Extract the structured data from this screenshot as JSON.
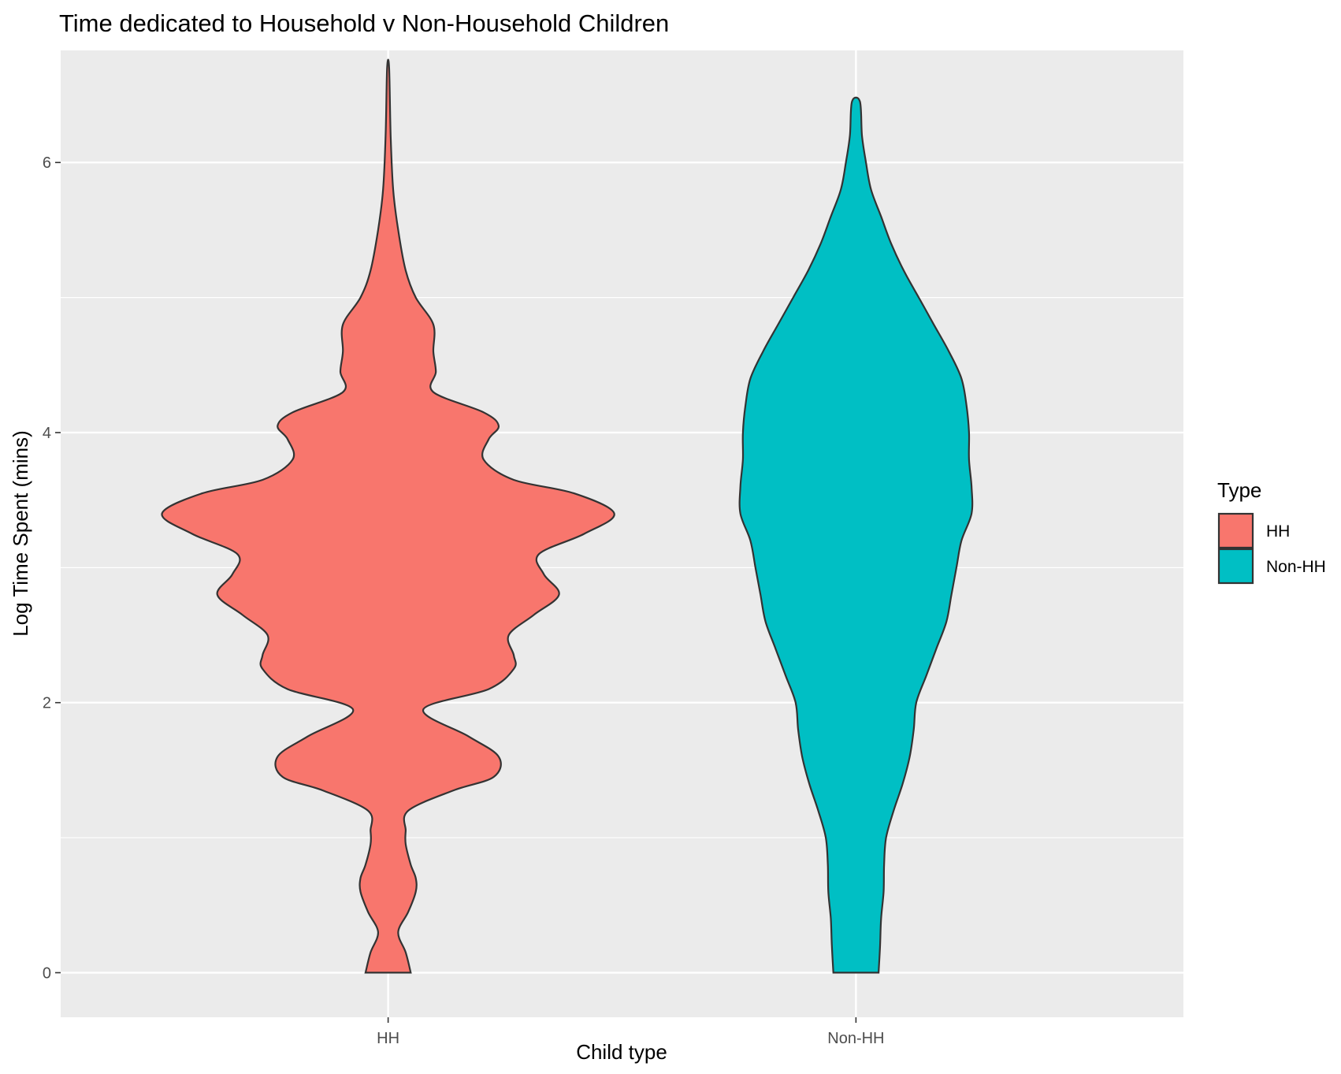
{
  "chart_data": {
    "type": "violin",
    "title": "Time dedicated to Household v Non-Household Children",
    "xlabel": "Child type",
    "ylabel": "Log Time Spent (mins)",
    "categories": [
      "HH",
      "Non-HH"
    ],
    "ylim": [
      -0.33,
      6.83
    ],
    "yticks": [
      0,
      2,
      4,
      6
    ],
    "grid": true,
    "legend": {
      "title": "Type",
      "position": "right",
      "entries": [
        {
          "label": "HH",
          "color": "#F8766D"
        },
        {
          "label": "Non-HH",
          "color": "#00BFC4"
        }
      ]
    },
    "series": [
      {
        "category": "HH",
        "color": "#F8766D",
        "y_range": [
          0,
          6.7
        ],
        "profile": [
          [
            0.0,
            0.045
          ],
          [
            0.15,
            0.035
          ],
          [
            0.3,
            0.02
          ],
          [
            0.45,
            0.04
          ],
          [
            0.6,
            0.055
          ],
          [
            0.7,
            0.055
          ],
          [
            0.8,
            0.045
          ],
          [
            0.95,
            0.035
          ],
          [
            1.05,
            0.035
          ],
          [
            1.2,
            0.04
          ],
          [
            1.35,
            0.13
          ],
          [
            1.45,
            0.21
          ],
          [
            1.6,
            0.22
          ],
          [
            1.75,
            0.16
          ],
          [
            1.95,
            0.07
          ],
          [
            2.1,
            0.2
          ],
          [
            2.25,
            0.25
          ],
          [
            2.35,
            0.25
          ],
          [
            2.5,
            0.24
          ],
          [
            2.65,
            0.29
          ],
          [
            2.8,
            0.34
          ],
          [
            2.95,
            0.31
          ],
          [
            3.1,
            0.3
          ],
          [
            3.25,
            0.39
          ],
          [
            3.4,
            0.45
          ],
          [
            3.55,
            0.37
          ],
          [
            3.65,
            0.25
          ],
          [
            3.8,
            0.19
          ],
          [
            3.95,
            0.2
          ],
          [
            4.05,
            0.22
          ],
          [
            4.15,
            0.19
          ],
          [
            4.3,
            0.09
          ],
          [
            4.45,
            0.095
          ],
          [
            4.6,
            0.09
          ],
          [
            4.8,
            0.09
          ],
          [
            5.0,
            0.055
          ],
          [
            5.2,
            0.035
          ],
          [
            5.5,
            0.02
          ],
          [
            5.8,
            0.01
          ],
          [
            6.2,
            0.005
          ],
          [
            6.7,
            0.002
          ]
        ]
      },
      {
        "category": "Non-HH",
        "color": "#00BFC4",
        "y_range": [
          0,
          6.45
        ],
        "profile": [
          [
            0.0,
            0.045
          ],
          [
            0.2,
            0.048
          ],
          [
            0.4,
            0.05
          ],
          [
            0.6,
            0.055
          ],
          [
            0.8,
            0.056
          ],
          [
            1.0,
            0.06
          ],
          [
            1.2,
            0.075
          ],
          [
            1.4,
            0.093
          ],
          [
            1.6,
            0.107
          ],
          [
            1.8,
            0.115
          ],
          [
            2.0,
            0.12
          ],
          [
            2.2,
            0.14
          ],
          [
            2.4,
            0.16
          ],
          [
            2.6,
            0.18
          ],
          [
            2.8,
            0.19
          ],
          [
            3.0,
            0.2
          ],
          [
            3.2,
            0.21
          ],
          [
            3.4,
            0.23
          ],
          [
            3.6,
            0.23
          ],
          [
            3.8,
            0.225
          ],
          [
            4.0,
            0.225
          ],
          [
            4.2,
            0.22
          ],
          [
            4.4,
            0.21
          ],
          [
            4.6,
            0.185
          ],
          [
            4.8,
            0.155
          ],
          [
            5.0,
            0.125
          ],
          [
            5.2,
            0.095
          ],
          [
            5.4,
            0.07
          ],
          [
            5.6,
            0.05
          ],
          [
            5.8,
            0.03
          ],
          [
            6.0,
            0.02
          ],
          [
            6.2,
            0.012
          ],
          [
            6.45,
            0.008
          ]
        ]
      }
    ]
  }
}
